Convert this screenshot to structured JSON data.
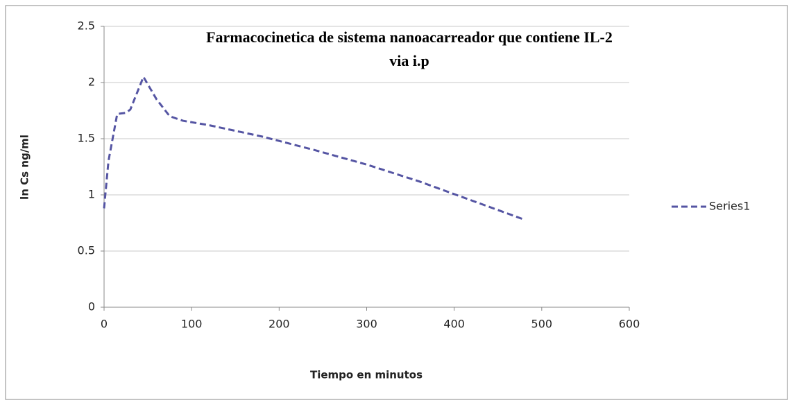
{
  "chart_data": {
    "type": "line",
    "title": [
      "Farmacocinetica de sistema nanoacarreador que contiene IL-2",
      "via  i.p"
    ],
    "x_label": "Tiempo en minutos",
    "y_label": "ln Cs  ng/ml",
    "x": [
      0,
      5,
      15,
      25,
      30,
      45,
      60,
      75,
      90,
      120,
      180,
      240,
      300,
      360,
      420,
      480
    ],
    "series": [
      {
        "name": "Series1",
        "color": "#5555a3",
        "values": [
          0.88,
          1.3,
          1.72,
          1.73,
          1.76,
          2.05,
          1.85,
          1.7,
          1.66,
          1.62,
          1.52,
          1.4,
          1.27,
          1.12,
          0.95,
          0.78
        ]
      }
    ],
    "xlim": [
      0,
      600
    ],
    "xticks": [
      0,
      100,
      200,
      300,
      400,
      500,
      600
    ],
    "ylim": [
      0,
      2.5
    ],
    "yticks": [
      0,
      0.5,
      1,
      1.5,
      2,
      2.5
    ],
    "grid": true,
    "legend": "right"
  }
}
